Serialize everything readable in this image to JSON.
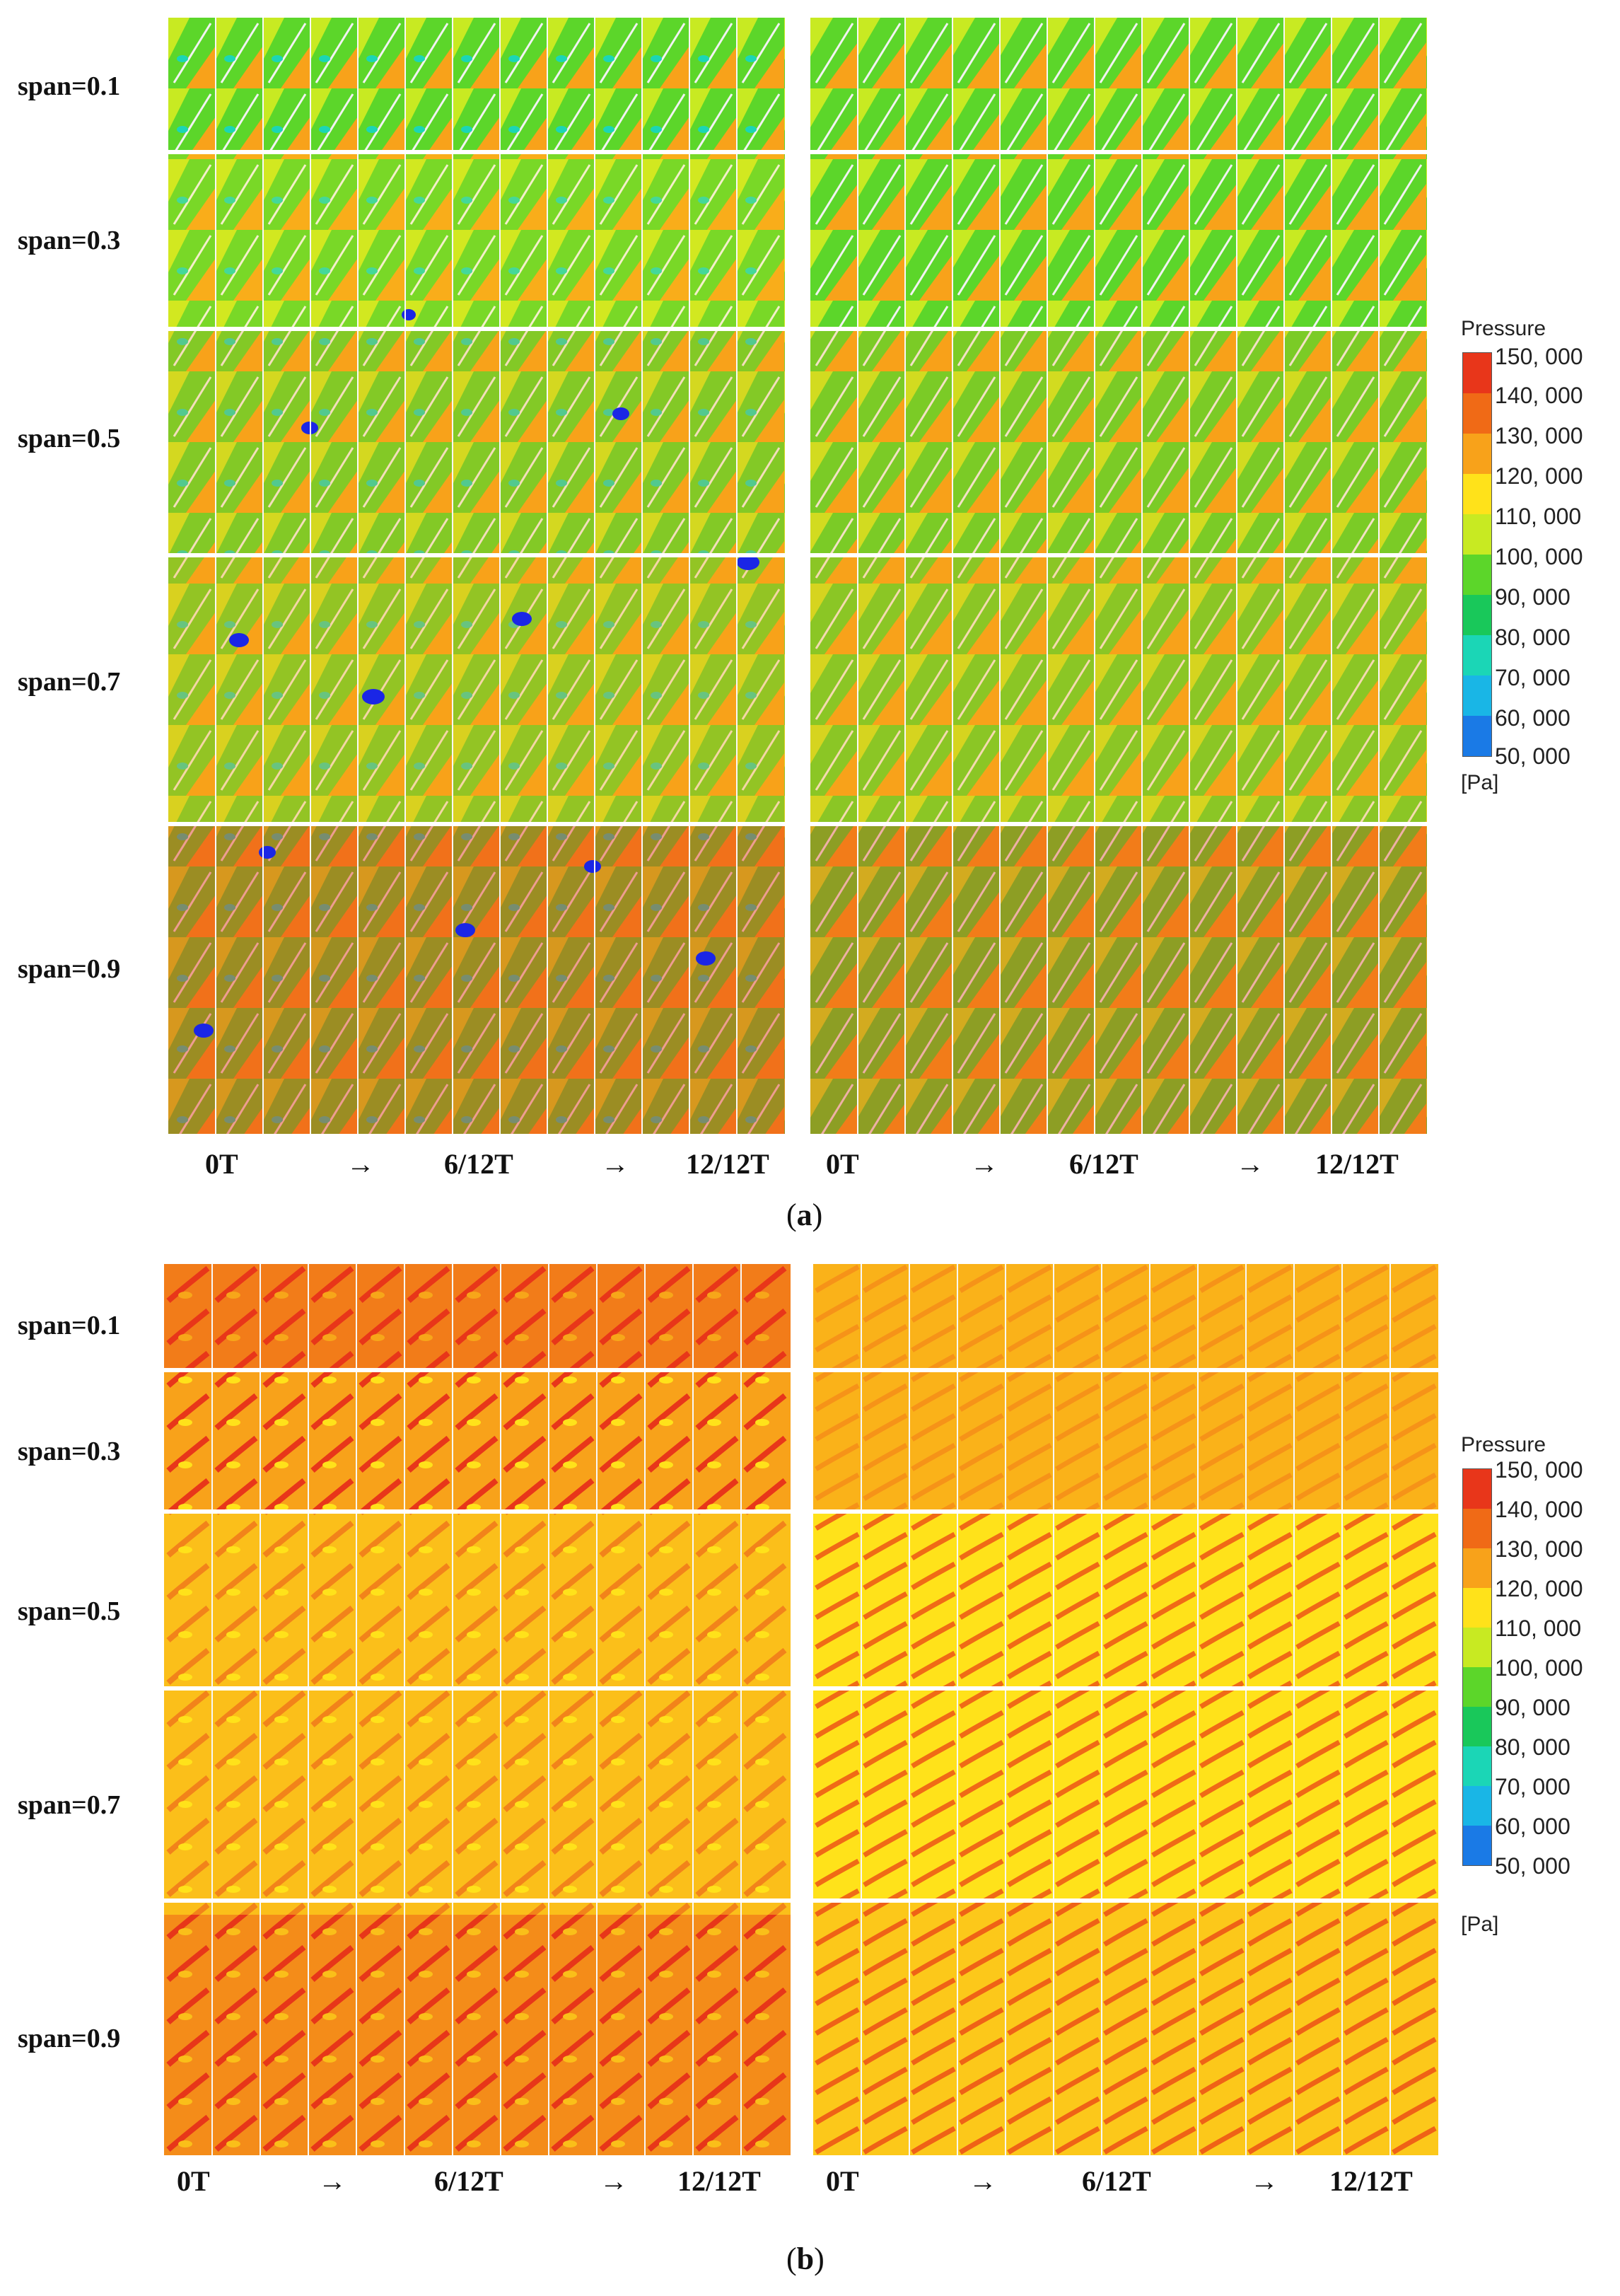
{
  "panel_a": {
    "caption_letter": "a",
    "span_labels": [
      "span=0.1",
      "span=0.3",
      "span=0.5",
      "span=0.7",
      "span=0.9"
    ],
    "time_labels": [
      "0T",
      "→",
      "6/12T",
      "→",
      "12/12T"
    ],
    "left_field": {
      "snapshots": 13
    },
    "right_field": {
      "snapshots": 13
    },
    "legend": {
      "title": "Pressure",
      "ticks": [
        "150, 000",
        "140, 000",
        "130, 000",
        "120, 000",
        "110, 000",
        "100, 000",
        "90, 000",
        "80, 000",
        "70, 000",
        "60, 000",
        "50, 000"
      ],
      "unit": "[Pa]",
      "colors": [
        "#e8361a",
        "#f06a16",
        "#f8a21a",
        "#ffe21a",
        "#c8ea22",
        "#5cd62a",
        "#19c85a",
        "#1bd6b6",
        "#19b6e6",
        "#1a7ae6",
        "#1a26e6"
      ]
    }
  },
  "panel_b": {
    "caption_letter": "b",
    "span_labels": [
      "span=0.1",
      "span=0.3",
      "span=0.5",
      "span=0.7",
      "span=0.9"
    ],
    "time_labels": [
      "0T",
      "→",
      "6/12T",
      "→",
      "12/12T"
    ],
    "left_field": {
      "snapshots": 13
    },
    "right_field": {
      "snapshots": 13
    },
    "legend": {
      "title": "Pressure",
      "ticks": [
        "150, 000",
        "140, 000",
        "130, 000",
        "120, 000",
        "110, 000",
        "100, 000",
        "90, 000",
        "80, 000",
        "70, 000",
        "60, 000",
        "50, 000"
      ],
      "unit": "[Pa]",
      "colors": [
        "#e8361a",
        "#f06a16",
        "#f8a21a",
        "#ffe21a",
        "#c8ea22",
        "#5cd62a",
        "#19c85a",
        "#1bd6b6",
        "#19b6e6",
        "#1a7ae6",
        "#1a26e6"
      ]
    }
  }
}
